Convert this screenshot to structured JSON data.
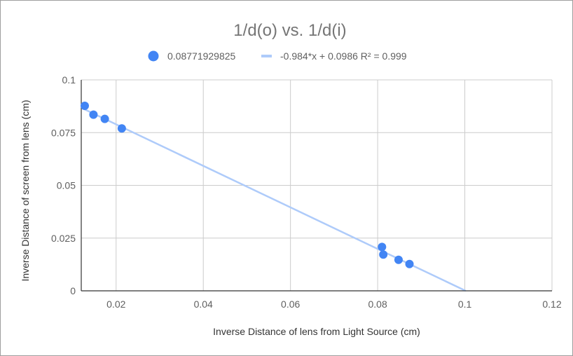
{
  "chart_data": {
    "type": "scatter",
    "title": "1/d(o) vs. 1/d(i)",
    "xlabel": "Inverse Distance of lens from Light Source (cm)",
    "ylabel": "Inverse Distance of screen from lens (cm)",
    "xlim": [
      0.012,
      0.12
    ],
    "ylim": [
      0,
      0.1
    ],
    "x_ticks": [
      0.02,
      0.04,
      0.06,
      0.08,
      0.1,
      0.12
    ],
    "x_tick_labels": [
      "0.02",
      "0.04",
      "0.06",
      "0.08",
      "0.1",
      "0.12"
    ],
    "y_ticks": [
      0,
      0.025,
      0.05,
      0.075,
      0.1
    ],
    "y_tick_labels": [
      "0",
      "0.025",
      "0.05",
      "0.075",
      "0.1"
    ],
    "grid": true,
    "legend_position": "top",
    "series": [
      {
        "name": "0.08771929825",
        "color": "#4285f4",
        "points": [
          {
            "x": 0.0128,
            "y": 0.0877
          },
          {
            "x": 0.0148,
            "y": 0.0835
          },
          {
            "x": 0.0174,
            "y": 0.0815
          },
          {
            "x": 0.0213,
            "y": 0.077
          },
          {
            "x": 0.081,
            "y": 0.0208
          },
          {
            "x": 0.0813,
            "y": 0.0172
          },
          {
            "x": 0.0848,
            "y": 0.0147
          },
          {
            "x": 0.0873,
            "y": 0.0127
          }
        ]
      }
    ],
    "trendline": {
      "name": "-0.984*x + 0.0986 R² = 0.999",
      "color": "#aecbfa",
      "slope": -0.984,
      "intercept": 0.0986
    }
  }
}
